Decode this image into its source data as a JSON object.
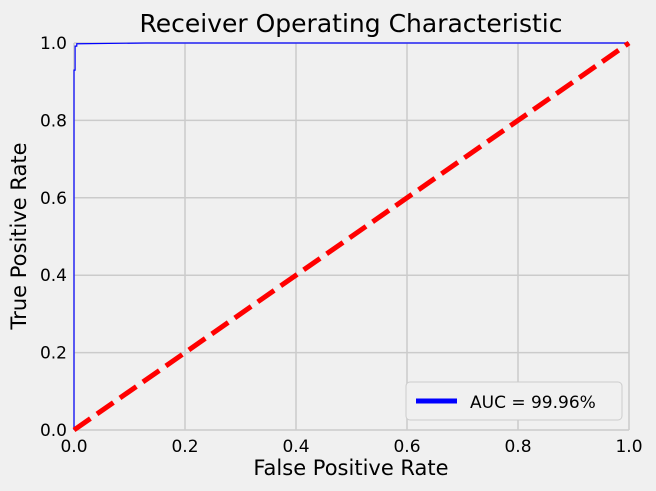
{
  "chart_data": {
    "type": "line",
    "title": "Receiver Operating Characteristic",
    "xlabel": "False Positive Rate",
    "ylabel": "True Positive Rate",
    "xlim": [
      0,
      1
    ],
    "ylim": [
      0,
      1
    ],
    "grid": true,
    "legend_position": "lower-right",
    "x_ticks": [
      "0.0",
      "0.2",
      "0.4",
      "0.6",
      "0.8",
      "1.0"
    ],
    "y_ticks": [
      "0.0",
      "0.2",
      "0.4",
      "0.6",
      "0.8",
      "1.0"
    ],
    "series": [
      {
        "name": "AUC = 99.96%",
        "color": "#0000ff",
        "style": "solid",
        "x": [
          0.0,
          0.0,
          0.002,
          0.002,
          0.005,
          0.005,
          0.01,
          0.13,
          1.0
        ],
        "y": [
          0.0,
          0.93,
          0.93,
          0.992,
          0.992,
          0.998,
          0.998,
          1.0,
          1.0
        ]
      },
      {
        "color": "#ff0000",
        "style": "dashed",
        "x": [
          0.0,
          1.0
        ],
        "y": [
          0.0,
          1.0
        ]
      }
    ]
  }
}
